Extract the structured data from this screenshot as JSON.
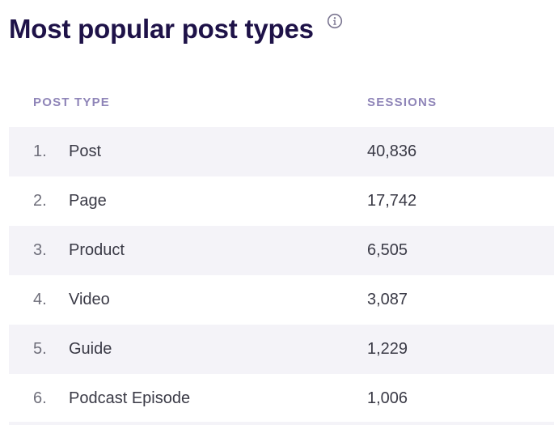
{
  "widget": {
    "title": "Most popular post types",
    "info_icon": "info-circle-icon"
  },
  "table": {
    "columns": [
      "POST TYPE",
      "SESSIONS"
    ],
    "rows": [
      {
        "rank": "1.",
        "type": "Post",
        "sessions": "40,836"
      },
      {
        "rank": "2.",
        "type": "Page",
        "sessions": "17,742"
      },
      {
        "rank": "3.",
        "type": "Product",
        "sessions": "6,505"
      },
      {
        "rank": "4.",
        "type": "Video",
        "sessions": "3,087"
      },
      {
        "rank": "5.",
        "type": "Guide",
        "sessions": "1,229"
      },
      {
        "rank": "6.",
        "type": "Podcast Episode",
        "sessions": "1,006"
      }
    ]
  },
  "colors": {
    "title": "#1e1248",
    "header_text": "#8f85b8",
    "row_shade": "#f4f3f8",
    "body_text": "#3a3a46",
    "rank_text": "#6e6e7a",
    "icon": "#7a7590"
  }
}
